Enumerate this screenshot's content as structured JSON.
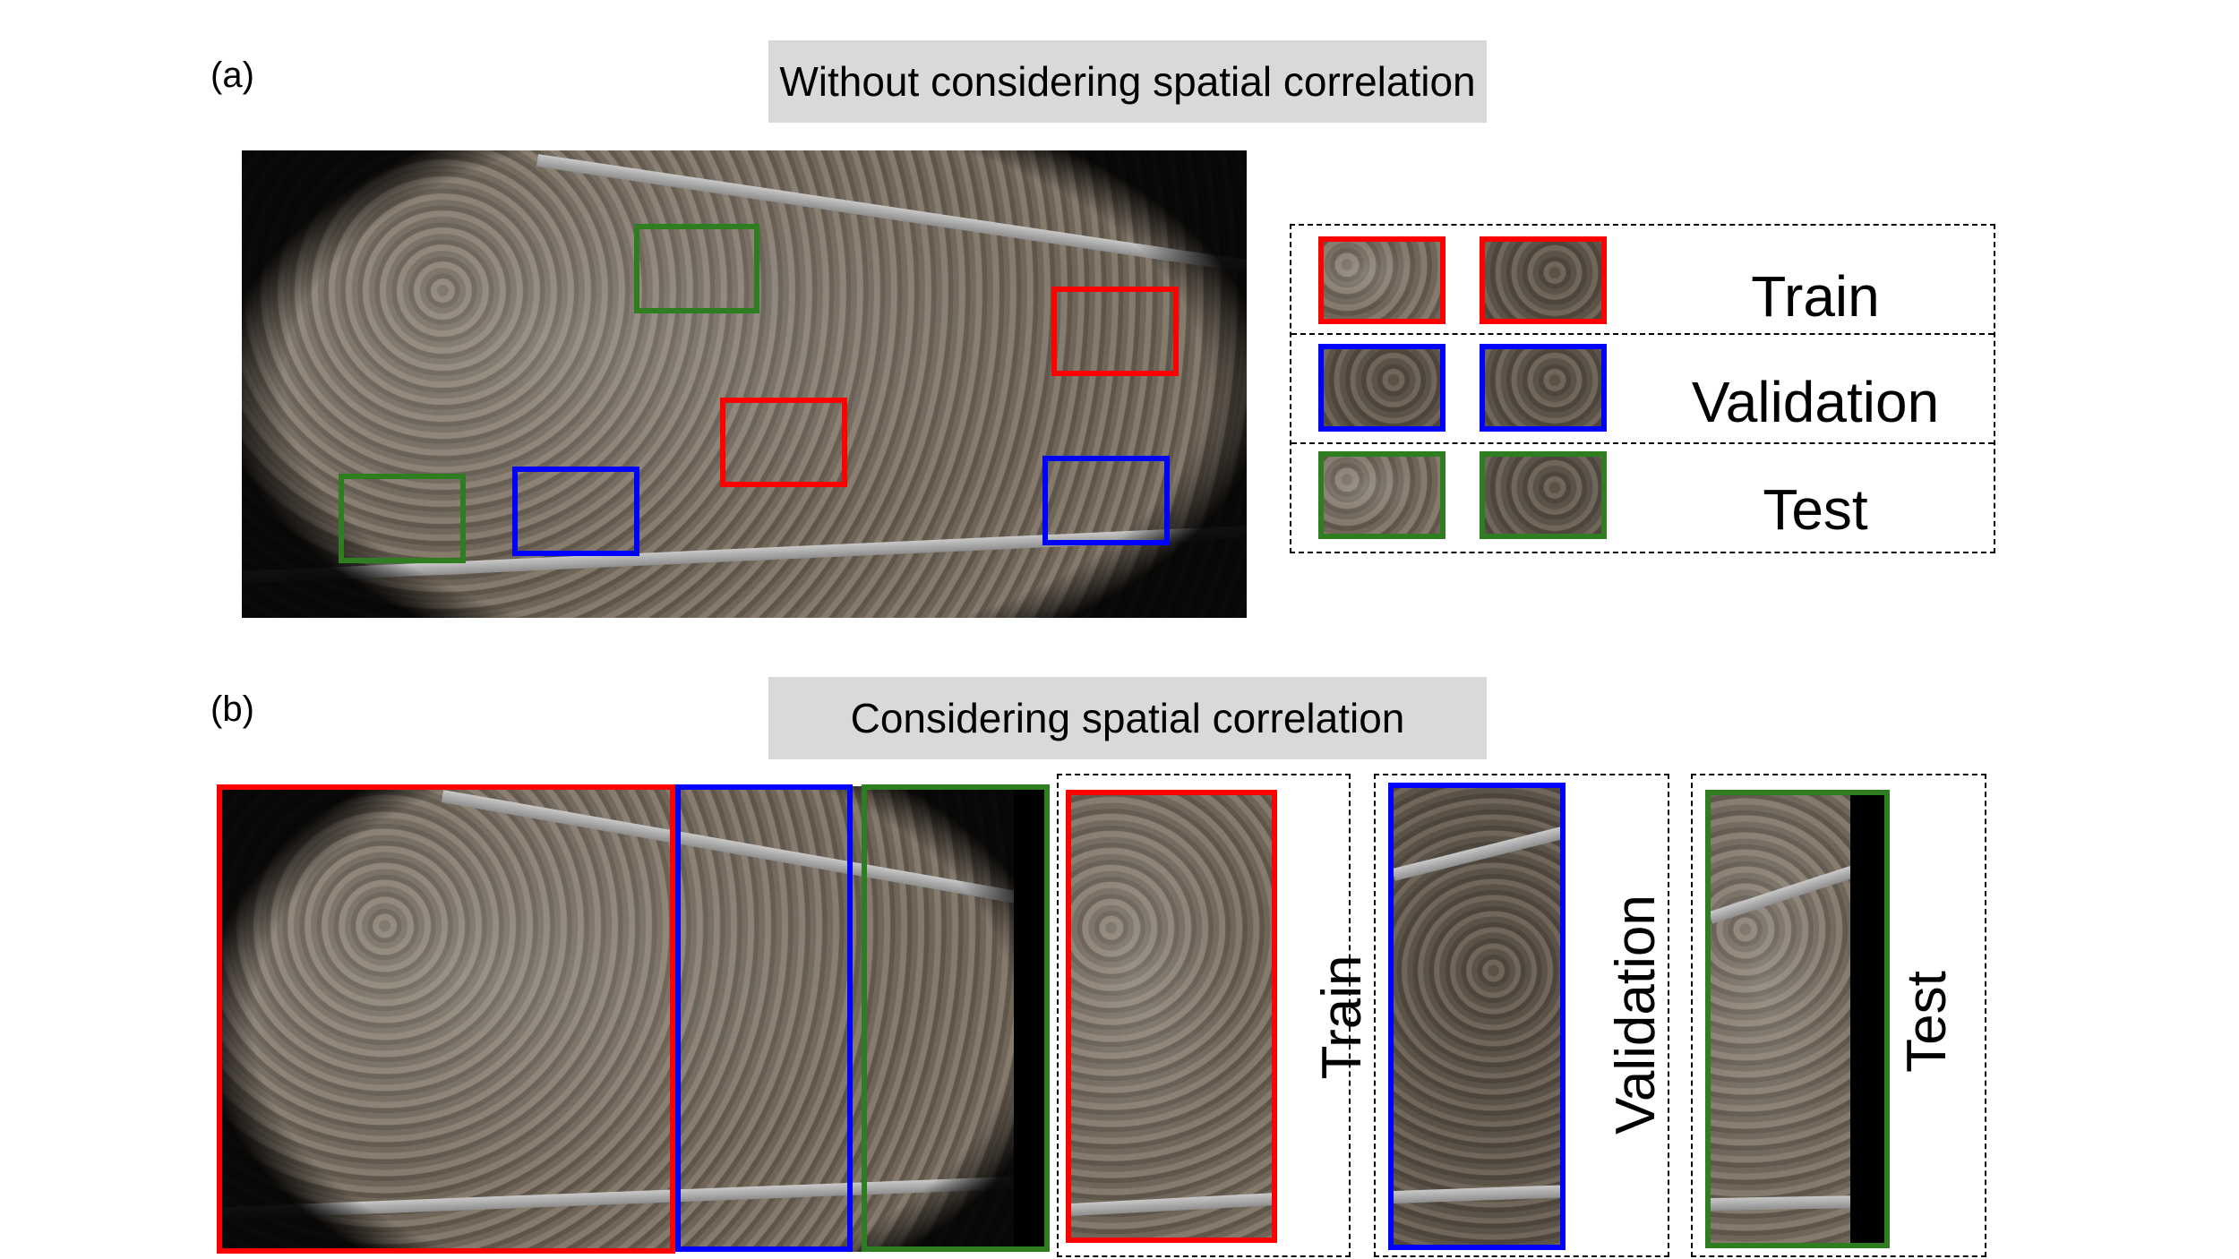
{
  "panel_a": {
    "label": "(a)",
    "title": "Without considering spatial correlation",
    "legend": [
      "Train",
      "Validation",
      "Test"
    ]
  },
  "panel_b": {
    "label": "(b)",
    "title": "Considering spatial correlation",
    "legend": [
      "Train",
      "Validation",
      "Test"
    ]
  },
  "colors": {
    "train": "#ff0000",
    "validation": "#0000ff",
    "test": "#2e7d20"
  }
}
